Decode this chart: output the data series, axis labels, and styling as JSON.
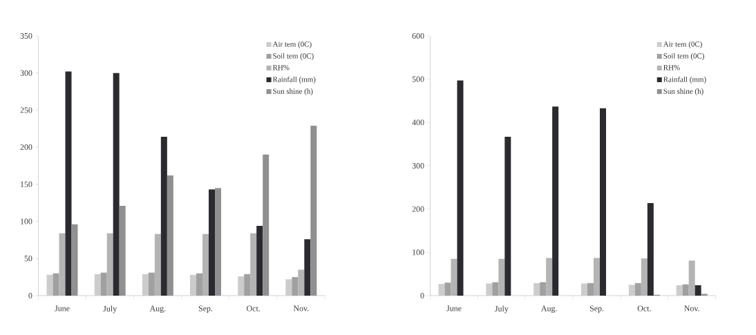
{
  "chart_data": [
    {
      "type": "bar",
      "categories": [
        "June",
        "July",
        "Aug.",
        "Sep.",
        "Oct.",
        "Nov."
      ],
      "ylim": [
        0,
        350
      ],
      "yticks": [
        0,
        50,
        100,
        150,
        200,
        250,
        300,
        350
      ],
      "grid": false,
      "legend": "top right",
      "series": [
        {
          "name": "Air tem (0C)",
          "color": "#cccccc",
          "values": [
            28,
            29,
            29,
            28,
            26,
            22
          ]
        },
        {
          "name": "Soil tem (0C)",
          "color": "#a0a0a0",
          "values": [
            30,
            31,
            31,
            30,
            29,
            25
          ]
        },
        {
          "name": "RH%",
          "color": "#b4b4b4",
          "values": [
            84,
            84,
            83,
            83,
            84,
            35
          ]
        },
        {
          "name": "Rainfall (mm)",
          "color": "#2a2a30",
          "values": [
            302,
            300,
            214,
            143,
            94,
            76
          ]
        },
        {
          "name": "Sun shine (h)",
          "color": "#909090",
          "values": [
            96,
            121,
            162,
            145,
            190,
            229
          ]
        }
      ]
    },
    {
      "type": "bar",
      "categories": [
        "June",
        "July",
        "Aug.",
        "Sep.",
        "Oct.",
        "Nov."
      ],
      "ylim": [
        0,
        600
      ],
      "yticks": [
        0,
        100,
        200,
        300,
        400,
        500,
        600
      ],
      "grid": false,
      "legend": "top right",
      "series": [
        {
          "name": "Air tem (0C)",
          "color": "#cccccc",
          "values": [
            27,
            28,
            29,
            28,
            25,
            24
          ]
        },
        {
          "name": "Soil tem (0C)",
          "color": "#a0a0a0",
          "values": [
            30,
            31,
            31,
            29,
            29,
            26
          ]
        },
        {
          "name": "RH%",
          "color": "#b4b4b4",
          "values": [
            85,
            85,
            87,
            87,
            86,
            81
          ]
        },
        {
          "name": "Rainfall (mm)",
          "color": "#2a2a30",
          "values": [
            497,
            367,
            437,
            433,
            214,
            24
          ]
        },
        {
          "name": "Sun shine (h)",
          "color": "#909090",
          "values": [
            null,
            null,
            null,
            null,
            2,
            4
          ]
        }
      ]
    }
  ]
}
